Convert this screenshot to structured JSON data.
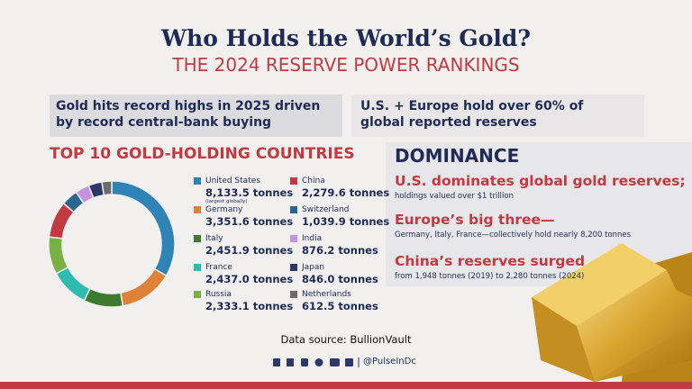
{
  "header": {
    "title": "Who Holds the World’s Gold?",
    "subtitle": "THE 2024 RESERVE POWER RANKINGS"
  },
  "highlights": [
    "Gold hits record highs in 2025 driven by record central-bank buying",
    "U.S. + Europe hold over 60% of global reported reserves"
  ],
  "chart_data": {
    "type": "pie",
    "donut": true,
    "title": "TOP 10 GOLD-HOLDING COUNTRIES",
    "categories": [
      "United States",
      "Germany",
      "Italy",
      "France",
      "Russia",
      "China",
      "Switzerland",
      "India",
      "Japan",
      "Netherlands"
    ],
    "values": [
      8133.5,
      3351.6,
      2451.9,
      2437.0,
      2333.1,
      2279.6,
      1039.9,
      876.2,
      846.0,
      612.5
    ],
    "value_labels": [
      "8,133.5 tonnes",
      "3,351.6 tonnes",
      "2,451.9 tonnes",
      "2,437.0 tonnes",
      "2,333.1 tonnes",
      "2,279.6 tonnes",
      "1,039.9 tonnes",
      "876.2 tonnes",
      "846.0 tonnes",
      "612.5 tonnes"
    ],
    "colors": [
      "#2f84b5",
      "#e0813a",
      "#3d7a2f",
      "#2ebcae",
      "#78b044",
      "#c13a42",
      "#2b6690",
      "#c792e0",
      "#2e3868",
      "#6b6b6b"
    ],
    "annotation": "(largest globally)"
  },
  "dominance": {
    "title": "DOMINANCE",
    "points": [
      {
        "headline": "U.S. dominates global gold reserves;",
        "detail": "holdings valued over $1 trillion"
      },
      {
        "headline": "Europe’s big three—",
        "detail": "Germany, Italy, France—collectively hold nearly 8,200 tonnes"
      },
      {
        "headline": "China’s reserves surged",
        "detail": "from 1,948 tonnes (2019) to 2,280 tonnes (2024)"
      }
    ]
  },
  "footer": {
    "source": "Data source: BullionVault",
    "handle": "@PulseInDc"
  }
}
